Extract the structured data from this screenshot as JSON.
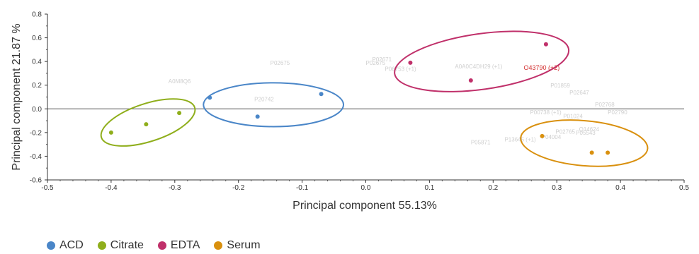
{
  "chart_data": {
    "type": "scatter",
    "xlabel": "Principal component 55.13%",
    "ylabel": "Principal component 21.87 %",
    "xlim": [
      -0.5,
      0.5
    ],
    "ylim": [
      -0.6,
      0.8
    ],
    "x_ticks": [
      -0.5,
      -0.4,
      -0.3,
      -0.2,
      -0.1,
      0.0,
      0.1,
      0.2,
      0.3,
      0.4,
      0.5
    ],
    "x_tick_labels": [
      "-0.5",
      "-0.4",
      "-0.3",
      "-0.2",
      "-0.1",
      "0.0",
      "0.1",
      "0.2",
      "0.3",
      "0.4",
      "0.5"
    ],
    "y_ticks": [
      -0.6,
      -0.4,
      -0.2,
      0.0,
      0.2,
      0.4,
      0.6,
      0.8
    ],
    "y_tick_labels": [
      "-0.6",
      "-0.4",
      "-0.2",
      "0.0",
      "0.2",
      "0.4",
      "0.6",
      "0.8"
    ],
    "legend_position": "bottom-left",
    "series": [
      {
        "name": "ACD",
        "color": "#4a86c8",
        "points": [
          [
            -0.245,
            0.095
          ],
          [
            -0.17,
            -0.065
          ],
          [
            -0.07,
            0.125
          ]
        ],
        "ellipse": {
          "cx": -0.145,
          "cy": 0.035,
          "rx": 0.11,
          "ry": 0.185,
          "angle": 0
        }
      },
      {
        "name": "Citrate",
        "color": "#8fae1b",
        "points": [
          [
            -0.4,
            -0.2
          ],
          [
            -0.345,
            -0.13
          ],
          [
            -0.293,
            -0.035
          ]
        ],
        "ellipse": {
          "cx": -0.342,
          "cy": -0.115,
          "rx": 0.077,
          "ry": 0.16,
          "angle": -18
        }
      },
      {
        "name": "EDTA",
        "color": "#c0306a",
        "points": [
          [
            0.07,
            0.39
          ],
          [
            0.165,
            0.24
          ],
          [
            0.283,
            0.545
          ]
        ],
        "ellipse": {
          "cx": 0.182,
          "cy": 0.4,
          "rx": 0.138,
          "ry": 0.235,
          "angle": -8
        }
      },
      {
        "name": "Serum",
        "color": "#d9900e",
        "points": [
          [
            0.277,
            -0.23
          ],
          [
            0.355,
            -0.37
          ],
          [
            0.38,
            -0.37
          ]
        ],
        "ellipse": {
          "cx": 0.343,
          "cy": -0.29,
          "rx": 0.1,
          "ry": 0.19,
          "angle": 5
        }
      }
    ],
    "loading_labels": [
      {
        "text": "P02675",
        "x": -0.15,
        "y": 0.37
      },
      {
        "text": "A0M8Q6",
        "x": -0.31,
        "y": 0.215
      },
      {
        "text": "P20742",
        "x": -0.175,
        "y": 0.065
      },
      {
        "text": "P02675",
        "x": 0.0,
        "y": 0.37
      },
      {
        "text": "P02671",
        "x": 0.01,
        "y": 0.4
      },
      {
        "text": "P06753 (+1)",
        "x": 0.03,
        "y": 0.32
      },
      {
        "text": "A0A0C4DH29 (+1)",
        "x": 0.14,
        "y": 0.34
      },
      {
        "text": "P01859",
        "x": 0.29,
        "y": 0.18
      },
      {
        "text": "P02647",
        "x": 0.32,
        "y": 0.12
      },
      {
        "text": "P02768",
        "x": 0.36,
        "y": 0.02
      },
      {
        "text": "P00738 (+1)",
        "x": 0.258,
        "y": -0.045
      },
      {
        "text": "P01024",
        "x": 0.31,
        "y": -0.08
      },
      {
        "text": "P02790",
        "x": 0.38,
        "y": -0.045
      },
      {
        "text": "P02765",
        "x": 0.298,
        "y": -0.21
      },
      {
        "text": "P05543",
        "x": 0.33,
        "y": -0.22
      },
      {
        "text": "P04004",
        "x": 0.276,
        "y": -0.255
      },
      {
        "text": "P13645 (+1)",
        "x": 0.218,
        "y": -0.275
      },
      {
        "text": "P05871",
        "x": 0.165,
        "y": -0.3
      },
      {
        "text": "Q14624",
        "x": 0.335,
        "y": -0.19
      }
    ],
    "highlight_label": {
      "text": "O43790 (+2)",
      "x": 0.248,
      "y": 0.33
    }
  }
}
